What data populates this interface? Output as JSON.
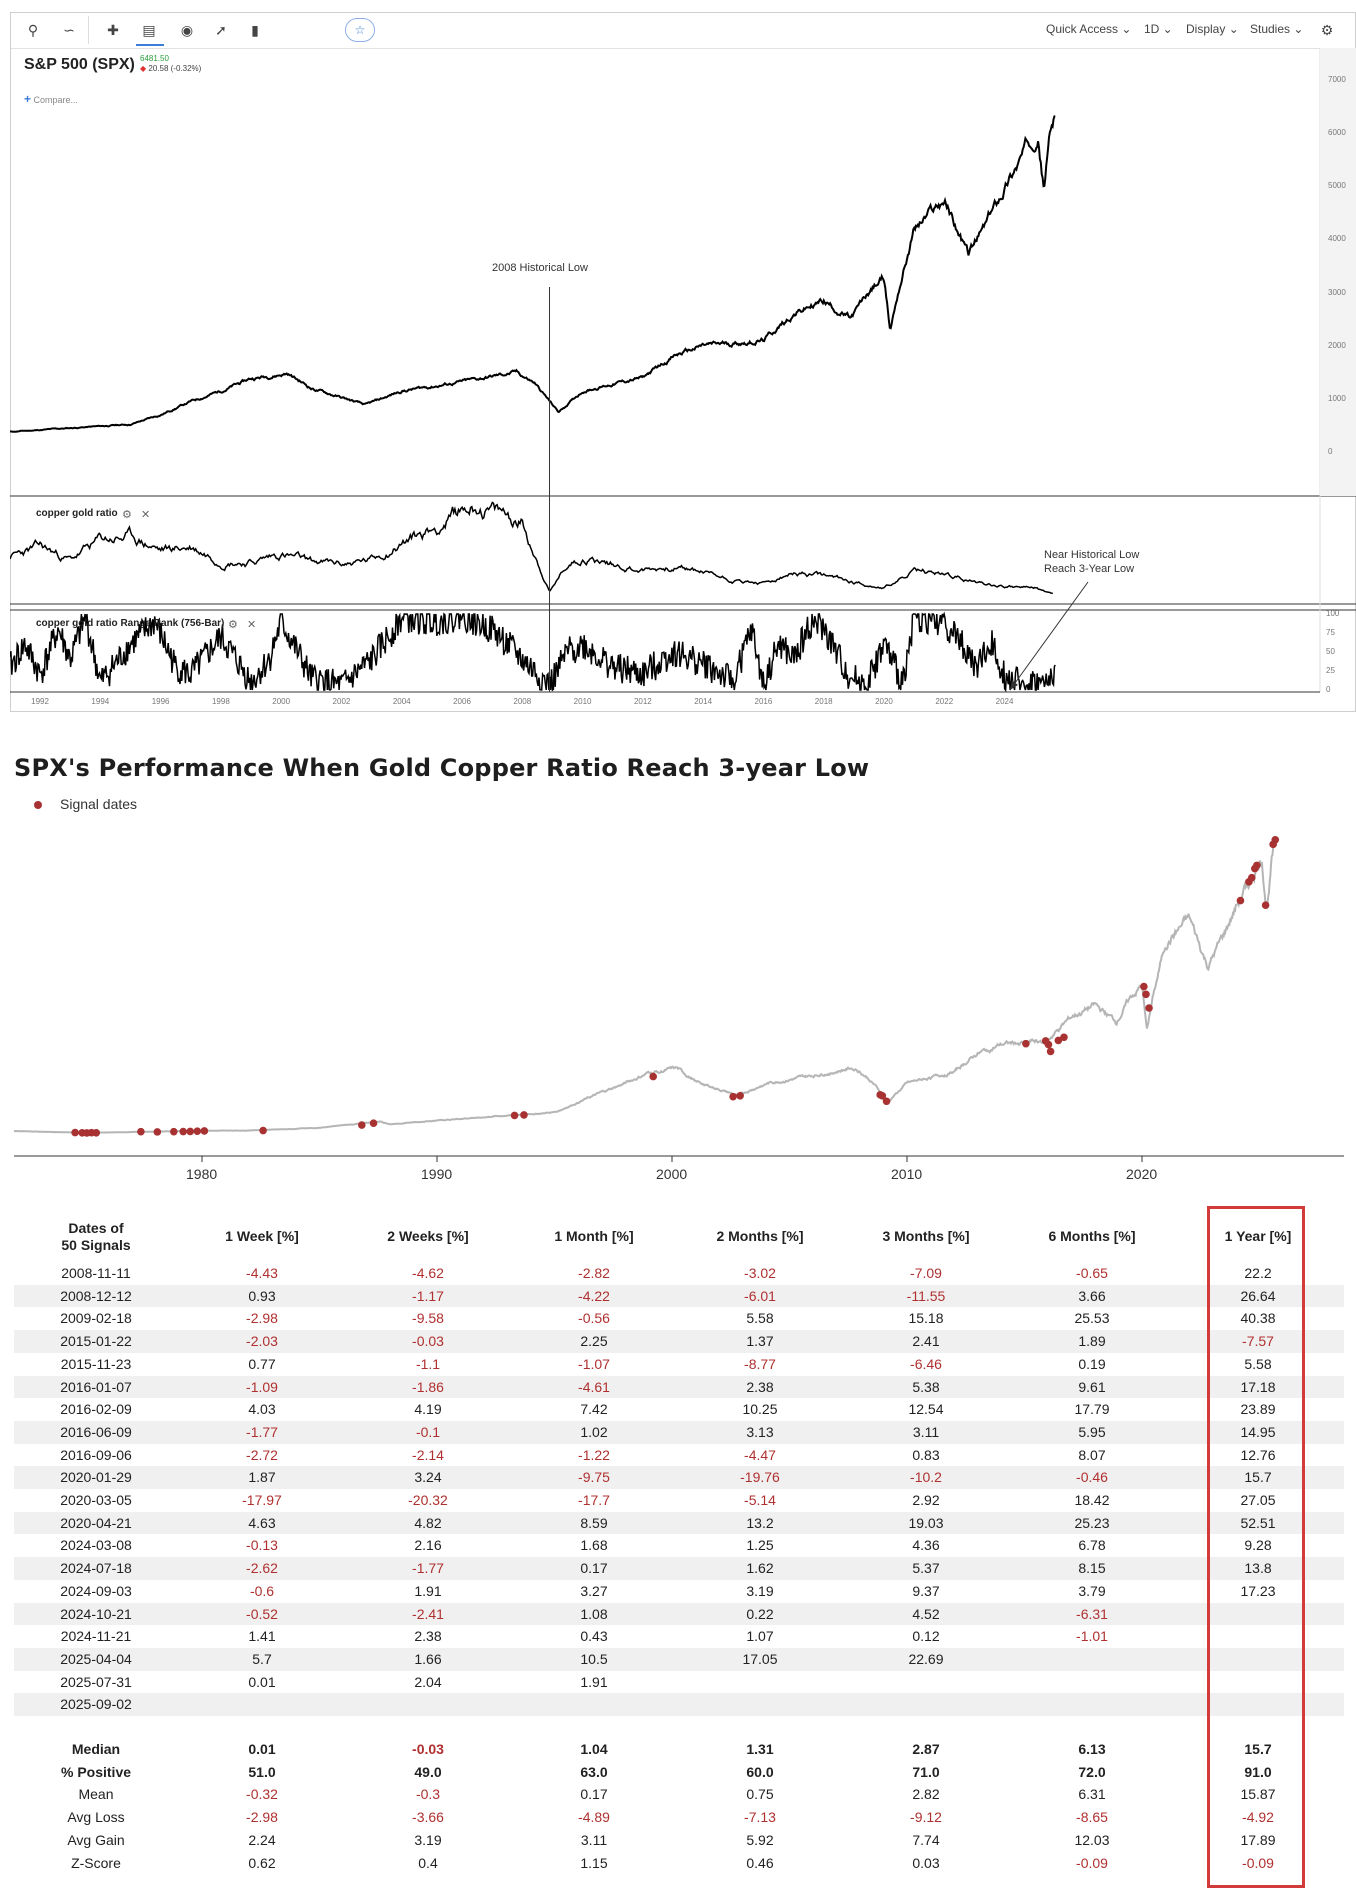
{
  "toolbar": {
    "quick_access": "Quick Access",
    "interval": "1D",
    "display": "Display",
    "studies": "Studies"
  },
  "symbol": {
    "title": "S&P 500 (SPX)",
    "price": "6481.50",
    "change": "20.58 (-0.32%)",
    "compare": "Compare..."
  },
  "colors": {
    "price_line": "#000000",
    "signal_dot": "#a83232",
    "gray_line": "#b5b5b5",
    "negative": "#b03030",
    "highlight": "#d33b3b",
    "up_price": "#2a9d3a"
  },
  "top_chart": {
    "annotation_low": "2008 Historical Low",
    "annotation_near_low": [
      "Near Historical Low",
      "Reach 3-Year Low"
    ],
    "indicator1_label": "copper gold ratio",
    "indicator2_label": "copper gold ratio Range Rank (756-Bar)",
    "main_y_ticks": [
      "7000",
      "6000",
      "5000",
      "4000",
      "3000",
      "2000",
      "1000",
      "0"
    ],
    "rank_y_ticks": [
      "100",
      "75",
      "50",
      "25",
      "0"
    ],
    "x_ticks": [
      "1992",
      "1994",
      "1996",
      "1998",
      "2000",
      "2002",
      "2004",
      "2006",
      "2008",
      "2010",
      "2012",
      "2014",
      "2016",
      "2018",
      "2020",
      "2022",
      "2024"
    ]
  },
  "chart_data": [
    {
      "type": "line",
      "title": "S&P 500 (SPX)",
      "xlabel": "",
      "ylabel": "",
      "x_range": [
        1991,
        2026.5
      ],
      "ylim": [
        0,
        7000
      ],
      "grid": false,
      "series": [
        {
          "name": "",
          "x": [
            1991,
            1993,
            1995,
            1996,
            1997,
            1998,
            1999,
            2000.2,
            2001,
            2002.8,
            2004,
            2006,
            2007.8,
            2008.4,
            2009.2,
            2010,
            2011,
            2012,
            2013,
            2014,
            2015,
            2016,
            2017,
            2018,
            2018.9,
            2019.5,
            2020.0,
            2020.2,
            2020.5,
            2021,
            2022.0,
            2022.8,
            2023.5,
            2024,
            2024.5,
            2025.1,
            2025.3,
            2025.5,
            2025.7
          ],
          "y": [
            380,
            450,
            520,
            700,
            950,
            1150,
            1380,
            1480,
            1200,
            880,
            1150,
            1320,
            1500,
            1300,
            750,
            1150,
            1280,
            1400,
            1800,
            2000,
            2050,
            2100,
            2600,
            2850,
            2500,
            3000,
            3300,
            2300,
            3100,
            4200,
            4750,
            3700,
            4400,
            5000,
            5500,
            6100,
            5000,
            6000,
            6480
          ]
        }
      ]
    },
    {
      "type": "line",
      "title": "copper gold ratio",
      "xlabel": "",
      "ylabel": "",
      "x_range": [
        1991,
        2026.5
      ],
      "series": [
        {
          "name": "",
          "x": [
            1991,
            1992,
            1993,
            1994,
            1995,
            1996,
            1997,
            1998,
            1999,
            2000,
            2001,
            2002,
            2003,
            2004,
            2005,
            2006,
            2006.5,
            2007,
            2008,
            2008.9,
            2009.5,
            2010,
            2011,
            2012,
            2013,
            2014,
            2015,
            2016,
            2017,
            2018,
            2019,
            2020,
            2021,
            2022,
            2023,
            2024,
            2025,
            2025.6
          ],
          "y": [
            0.45,
            0.55,
            0.42,
            0.62,
            0.65,
            0.52,
            0.55,
            0.42,
            0.4,
            0.48,
            0.4,
            0.38,
            0.42,
            0.6,
            0.72,
            0.92,
            0.98,
            0.9,
            0.8,
            0.1,
            0.38,
            0.45,
            0.38,
            0.32,
            0.35,
            0.3,
            0.22,
            0.18,
            0.28,
            0.26,
            0.2,
            0.14,
            0.3,
            0.28,
            0.2,
            0.16,
            0.14,
            0.08
          ]
        }
      ]
    },
    {
      "type": "line",
      "title": "copper gold ratio Range Rank (756-Bar)",
      "xlabel": "",
      "ylabel": "",
      "x_range": [
        1991,
        2026.5
      ],
      "ylim": [
        0,
        100
      ],
      "series": [
        {
          "name": "",
          "x": [
            1991,
            1991.5,
            1992,
            1992.6,
            1993,
            1993.5,
            1994,
            1995,
            1995.8,
            1996.5,
            1997,
            1998,
            1999,
            1999.6,
            2000,
            2001,
            2002,
            2003,
            2004,
            2005,
            2006,
            2007,
            2008,
            2008.9,
            2009.5,
            2010,
            2011,
            2012,
            2013,
            2014,
            2015,
            2015.6,
            2016,
            2016.5,
            2017,
            2017.6,
            2018,
            2018.8,
            2019.4,
            2020,
            2020.6,
            2021,
            2022,
            2022.6,
            2023,
            2023.6,
            2024,
            2024.6,
            2025,
            2025.4,
            2025.7
          ],
          "y": [
            30,
            60,
            20,
            80,
            40,
            95,
            10,
            60,
            90,
            30,
            20,
            70,
            10,
            40,
            90,
            15,
            5,
            40,
            95,
            90,
            98,
            80,
            40,
            5,
            50,
            60,
            30,
            20,
            50,
            35,
            10,
            80,
            5,
            60,
            40,
            90,
            80,
            20,
            5,
            60,
            10,
            95,
            90,
            60,
            30,
            60,
            20,
            5,
            10,
            5,
            30
          ]
        }
      ]
    },
    {
      "type": "scatter",
      "title": "SPX's Performance When Gold Copper Ratio Reach 3-year Low",
      "xlabel": "",
      "ylabel": "",
      "legend": "top-left",
      "x_ticks": [
        1980,
        1990,
        2000,
        2010,
        2020
      ],
      "x_range": [
        1972,
        2028
      ],
      "ylim": [
        0,
        7000
      ],
      "series": [
        {
          "name": "",
          "type": "line",
          "x": [
            1972,
            1975,
            1978,
            1980,
            1982,
            1985,
            1987.6,
            1988,
            1990,
            1991,
            1993,
            1995,
            1997,
            1998,
            1999,
            2000.2,
            2001,
            2002.8,
            2004,
            2006,
            2007.8,
            2008.5,
            2009.2,
            2010,
            2011,
            2012,
            2013,
            2014,
            2015,
            2016,
            2017,
            2018,
            2018.9,
            2019.5,
            2020.0,
            2020.2,
            2020.5,
            2021,
            2022.0,
            2022.8,
            2023.5,
            2024,
            2024.5,
            2025.1,
            2025.3,
            2025.5,
            2025.7
          ],
          "y": [
            110,
            70,
            95,
            115,
            120,
            180,
            320,
            260,
            340,
            380,
            450,
            520,
            950,
            1150,
            1380,
            1480,
            1200,
            880,
            1150,
            1320,
            1500,
            1200,
            750,
            1150,
            1280,
            1400,
            1800,
            2000,
            2050,
            2100,
            2600,
            2850,
            2500,
            3000,
            3300,
            2300,
            3100,
            4200,
            4750,
            3700,
            4400,
            5000,
            5500,
            6100,
            5000,
            6000,
            6480
          ]
        },
        {
          "name": "Signal dates",
          "type": "scatter",
          "x": [
            1974.6,
            1974.9,
            1975.1,
            1975.3,
            1975.5,
            1977.4,
            1978.1,
            1978.8,
            1979.2,
            1979.5,
            1979.8,
            1980.1,
            1982.6,
            1986.8,
            1987.3,
            1993.3,
            1993.7,
            1999.2,
            2002.6,
            2002.9,
            2008.86,
            2008.95,
            2009.13,
            2015.06,
            2015.9,
            2016.02,
            2016.11,
            2016.44,
            2016.68,
            2020.08,
            2020.17,
            2020.3,
            2024.19,
            2024.55,
            2024.67,
            2024.8,
            2024.89,
            2025.26,
            2025.58,
            2025.67
          ],
          "y": [
            75,
            70,
            68,
            72,
            70,
            95,
            90,
            95,
            98,
            100,
            105,
            110,
            120,
            240,
            280,
            450,
            460,
            1300,
            860,
            880,
            900,
            880,
            760,
            2020,
            2080,
            2000,
            1850,
            2090,
            2160,
            3270,
            3100,
            2800,
            5150,
            5560,
            5650,
            5850,
            5920,
            5050,
            6380,
            6480
          ]
        }
      ]
    },
    {
      "type": "table",
      "columns": [
        "Dates of 50 Signals",
        "1 Week [%]",
        "2 Weeks [%]",
        "1 Month [%]",
        "2 Months [%]",
        "3 Months [%]",
        "6 Months [%]",
        "1 Year [%]"
      ],
      "rows": [
        [
          "2008-11-11",
          "-4.43",
          "-4.62",
          "-2.82",
          "-3.02",
          "-7.09",
          "-0.65",
          "22.2"
        ],
        [
          "2008-12-12",
          "0.93",
          "-1.17",
          "-4.22",
          "-6.01",
          "-11.55",
          "3.66",
          "26.64"
        ],
        [
          "2009-02-18",
          "-2.98",
          "-9.58",
          "-0.56",
          "5.58",
          "15.18",
          "25.53",
          "40.38"
        ],
        [
          "2015-01-22",
          "-2.03",
          "-0.03",
          "2.25",
          "1.37",
          "2.41",
          "1.89",
          "-7.57"
        ],
        [
          "2015-11-23",
          "0.77",
          "-1.1",
          "-1.07",
          "-8.77",
          "-6.46",
          "0.19",
          "5.58"
        ],
        [
          "2016-01-07",
          "-1.09",
          "-1.86",
          "-4.61",
          "2.38",
          "5.38",
          "9.61",
          "17.18"
        ],
        [
          "2016-02-09",
          "4.03",
          "4.19",
          "7.42",
          "10.25",
          "12.54",
          "17.79",
          "23.89"
        ],
        [
          "2016-06-09",
          "-1.77",
          "-0.1",
          "1.02",
          "3.13",
          "3.11",
          "5.95",
          "14.95"
        ],
        [
          "2016-09-06",
          "-2.72",
          "-2.14",
          "-1.22",
          "-4.47",
          "0.83",
          "8.07",
          "12.76"
        ],
        [
          "2020-01-29",
          "1.87",
          "3.24",
          "-9.75",
          "-19.76",
          "-10.2",
          "-0.46",
          "15.7"
        ],
        [
          "2020-03-05",
          "-17.97",
          "-20.32",
          "-17.7",
          "-5.14",
          "2.92",
          "18.42",
          "27.05"
        ],
        [
          "2020-04-21",
          "4.63",
          "4.82",
          "8.59",
          "13.2",
          "19.03",
          "25.23",
          "52.51"
        ],
        [
          "2024-03-08",
          "-0.13",
          "2.16",
          "1.68",
          "1.25",
          "4.36",
          "6.78",
          "9.28"
        ],
        [
          "2024-07-18",
          "-2.62",
          "-1.77",
          "0.17",
          "1.62",
          "5.37",
          "8.15",
          "13.8"
        ],
        [
          "2024-09-03",
          "-0.6",
          "1.91",
          "3.27",
          "3.19",
          "9.37",
          "3.79",
          "17.23"
        ],
        [
          "2024-10-21",
          "-0.52",
          "-2.41",
          "1.08",
          "0.22",
          "4.52",
          "-6.31",
          ""
        ],
        [
          "2024-11-21",
          "1.41",
          "2.38",
          "0.43",
          "1.07",
          "0.12",
          "-1.01",
          ""
        ],
        [
          "2025-04-04",
          "5.7",
          "1.66",
          "10.5",
          "17.05",
          "22.69",
          "",
          ""
        ],
        [
          "2025-07-31",
          "0.01",
          "2.04",
          "1.91",
          "",
          "",
          "",
          ""
        ],
        [
          "2025-09-02",
          "",
          "",
          "",
          "",
          "",
          "",
          ""
        ]
      ],
      "summary": [
        [
          "Median",
          "0.01",
          "-0.03",
          "1.04",
          "1.31",
          "2.87",
          "6.13",
          "15.7"
        ],
        [
          "% Positive",
          "51.0",
          "49.0",
          "63.0",
          "60.0",
          "71.0",
          "72.0",
          "91.0"
        ],
        [
          "Mean",
          "-0.32",
          "-0.3",
          "0.17",
          "0.75",
          "2.82",
          "6.31",
          "15.87"
        ],
        [
          "Avg Loss",
          "-2.98",
          "-3.66",
          "-4.89",
          "-7.13",
          "-9.12",
          "-8.65",
          "-4.92"
        ],
        [
          "Avg Gain",
          "2.24",
          "3.19",
          "3.11",
          "5.92",
          "7.74",
          "12.03",
          "17.89"
        ],
        [
          "Z-Score",
          "0.62",
          "0.4",
          "1.15",
          "0.46",
          "0.03",
          "-0.09",
          "-0.09"
        ]
      ]
    }
  ]
}
